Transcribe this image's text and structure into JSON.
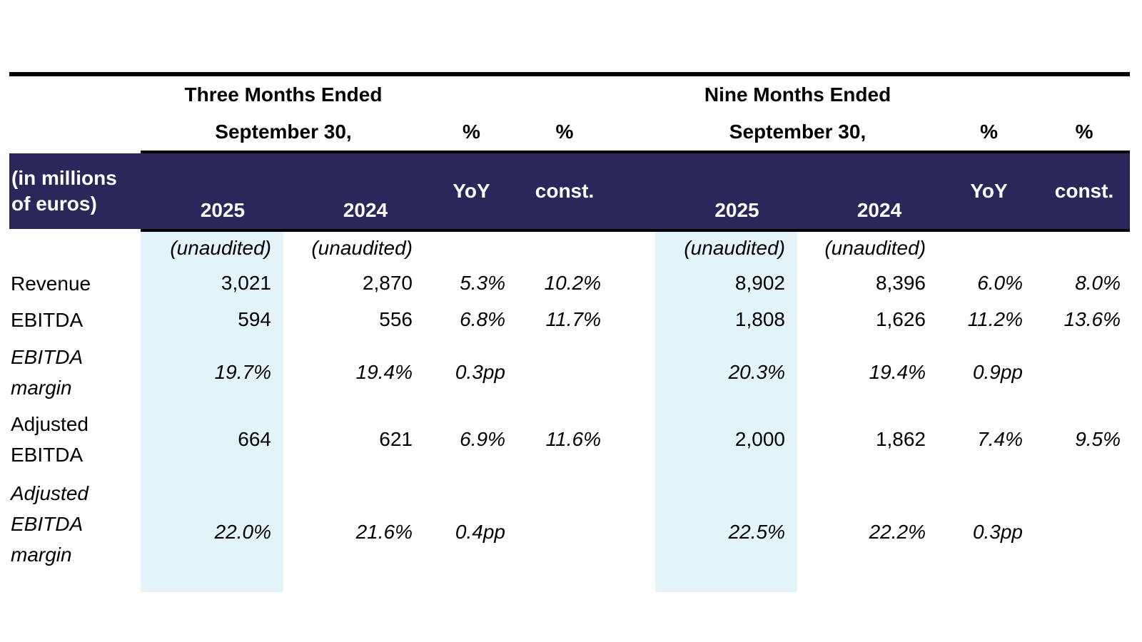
{
  "unit_label_lines": [
    "(in millions",
    "of euros)"
  ],
  "groups": {
    "three": {
      "title_line1": "Three Months Ended",
      "title_line2": "September 30,"
    },
    "nine": {
      "title_line1": "Nine Months Ended",
      "title_line2": "September 30,"
    }
  },
  "headers": {
    "pct": "%",
    "yoy": "YoY",
    "const": "const.",
    "year_2025": "2025",
    "year_2024": "2024",
    "unaudited": "(unaudited)"
  },
  "colors": {
    "navy": "#2A285A",
    "highlight": "#E3F4F8",
    "rule": "#000000"
  },
  "rows": [
    {
      "label_lines": [
        "Revenue"
      ],
      "tm": {
        "y2025": "3,021",
        "y2024": "2,870",
        "yoy": "5.3%",
        "const": "10.2%"
      },
      "nm": {
        "y2025": "8,902",
        "y2024": "8,396",
        "yoy": "6.0%",
        "const": "8.0%"
      }
    },
    {
      "label_lines": [
        "EBITDA"
      ],
      "tm": {
        "y2025": "594",
        "y2024": "556",
        "yoy": "6.8%",
        "const": "11.7%"
      },
      "nm": {
        "y2025": "1,808",
        "y2024": "1,626",
        "yoy": "11.2%",
        "const": "13.6%"
      }
    },
    {
      "label_lines": [
        "EBITDA",
        "margin"
      ],
      "tm": {
        "y2025": "19.7%",
        "y2024": "19.4%",
        "yoy": "0.3pp",
        "const": ""
      },
      "nm": {
        "y2025": "20.3%",
        "y2024": "19.4%",
        "yoy": "0.9pp",
        "const": ""
      }
    },
    {
      "label_lines": [
        "Adjusted",
        "EBITDA"
      ],
      "tm": {
        "y2025": "664",
        "y2024": "621",
        "yoy": "6.9%",
        "const": "11.6%"
      },
      "nm": {
        "y2025": "2,000",
        "y2024": "1,862",
        "yoy": "7.4%",
        "const": "9.5%"
      }
    },
    {
      "label_lines": [
        "Adjusted",
        "EBITDA",
        "margin"
      ],
      "tm": {
        "y2025": "22.0%",
        "y2024": "21.6%",
        "yoy": "0.4pp",
        "const": ""
      },
      "nm": {
        "y2025": "22.5%",
        "y2024": "22.2%",
        "yoy": "0.3pp",
        "const": ""
      }
    }
  ]
}
